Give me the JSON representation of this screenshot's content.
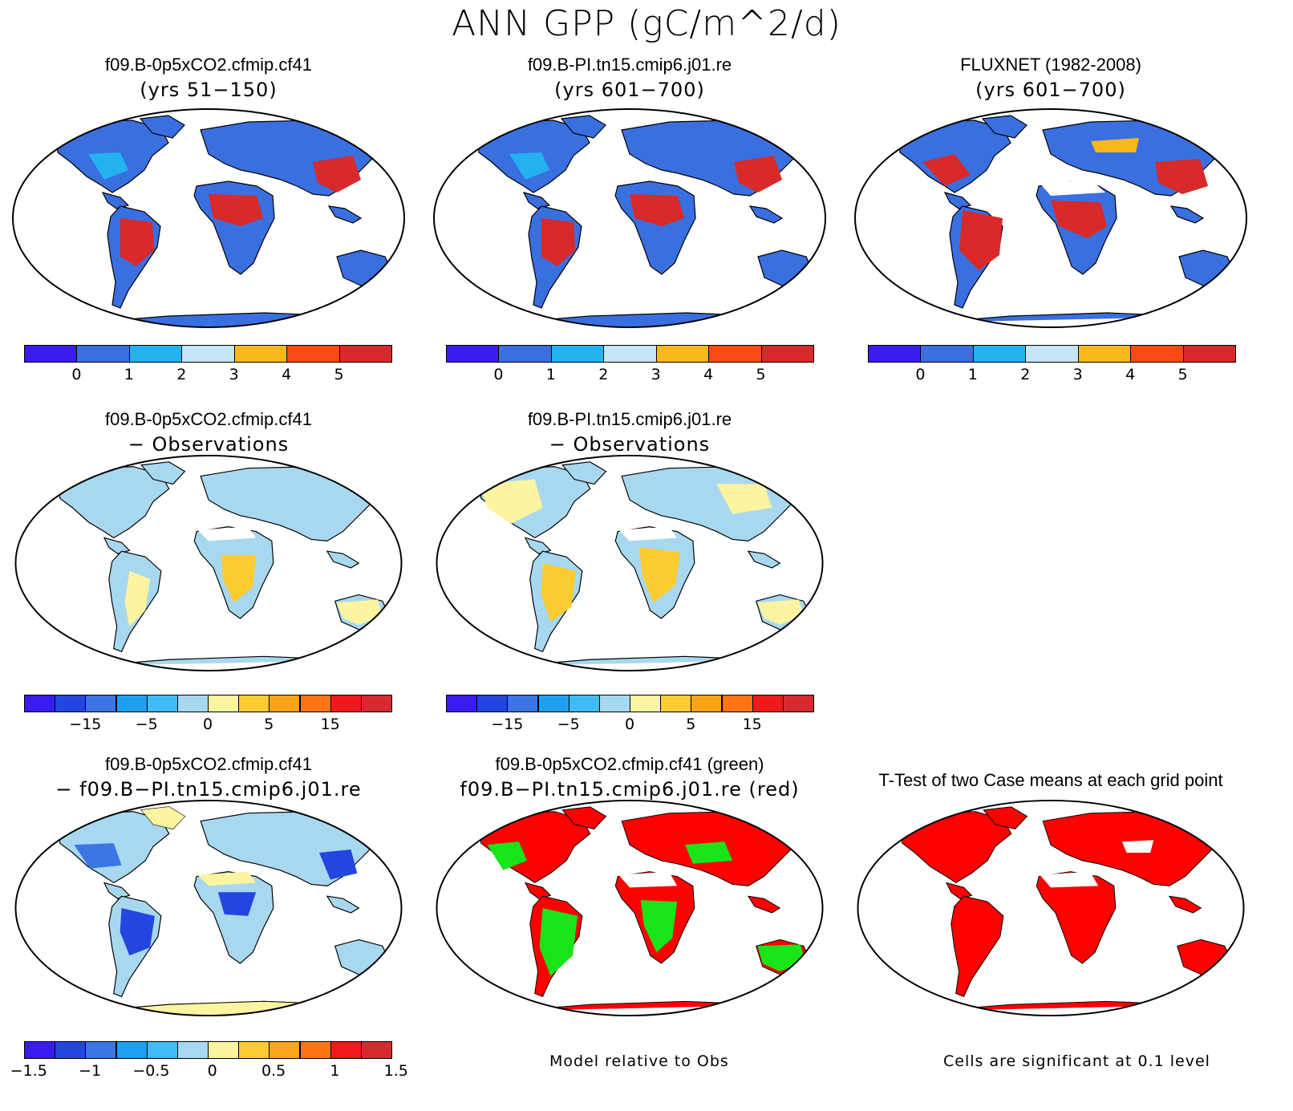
{
  "title": "ANN GPP (gC/m^2/d)",
  "palettes": {
    "abs": [
      "#3a1cf0",
      "#3a6fe0",
      "#22b2f0",
      "#c4e6f4",
      "#fbb81c",
      "#fb4a14",
      "#d82a2a"
    ],
    "diff": [
      "#3a1cf0",
      "#2346e0",
      "#3a76e4",
      "#1ea0f0",
      "#40bcf4",
      "#a8d8f0",
      "#fcf4a0",
      "#fccc30",
      "#fca418",
      "#fc7414",
      "#f01a1a",
      "#d42a30"
    ],
    "ttest": [
      "#ff0000"
    ]
  },
  "panels": [
    {
      "id": "p1",
      "line1": "f09.B-0p5xCO2.cfmip.cf41",
      "line2": "(yrs 51−150)",
      "colorbar": {
        "palette": "abs",
        "ticks": [
          "0",
          "1",
          "2",
          "3",
          "4",
          "5"
        ]
      }
    },
    {
      "id": "p2",
      "line1": "f09.B-PI.tn15.cmip6.j01.re",
      "line2": "(yrs 601−700)",
      "colorbar": {
        "palette": "abs",
        "ticks": [
          "0",
          "1",
          "2",
          "3",
          "4",
          "5"
        ]
      }
    },
    {
      "id": "p3",
      "line1": "FLUXNET (1982-2008)",
      "line2": "(yrs 601−700)",
      "colorbar": {
        "palette": "abs",
        "ticks": [
          "0",
          "1",
          "2",
          "3",
          "4",
          "5"
        ]
      }
    },
    {
      "id": "p4",
      "line1": "f09.B-0p5xCO2.cfmip.cf41",
      "line2": "− Observations",
      "colorbar": {
        "palette": "diff",
        "ticks": [
          "−15",
          "−5",
          "0",
          "5",
          "15"
        ]
      }
    },
    {
      "id": "p5",
      "line1": "f09.B-PI.tn15.cmip6.j01.re",
      "line2": "− Observations",
      "colorbar": {
        "palette": "diff",
        "ticks": [
          "−15",
          "−5",
          "0",
          "5",
          "15"
        ]
      }
    },
    {
      "id": "p6",
      "line1": "f09.B-0p5xCO2.cfmip.cf41",
      "line2": "− f09.B−PI.tn15.cmip6.j01.re",
      "colorbar": {
        "palette": "diff",
        "ticks": [
          "−1.5",
          "−1",
          "−0.5",
          "0",
          "0.5",
          "1",
          "1.5"
        ]
      }
    },
    {
      "id": "p7",
      "line1": "f09.B-0p5xCO2.cfmip.cf41 (green)",
      "line2": "f09.B−PI.tn15.cmip6.j01.re (red)",
      "note": "Model relative to Obs"
    },
    {
      "id": "p8",
      "line1": "T-Test of two Case means at each grid point",
      "note": "Cells are significant at 0.1 level"
    }
  ]
}
